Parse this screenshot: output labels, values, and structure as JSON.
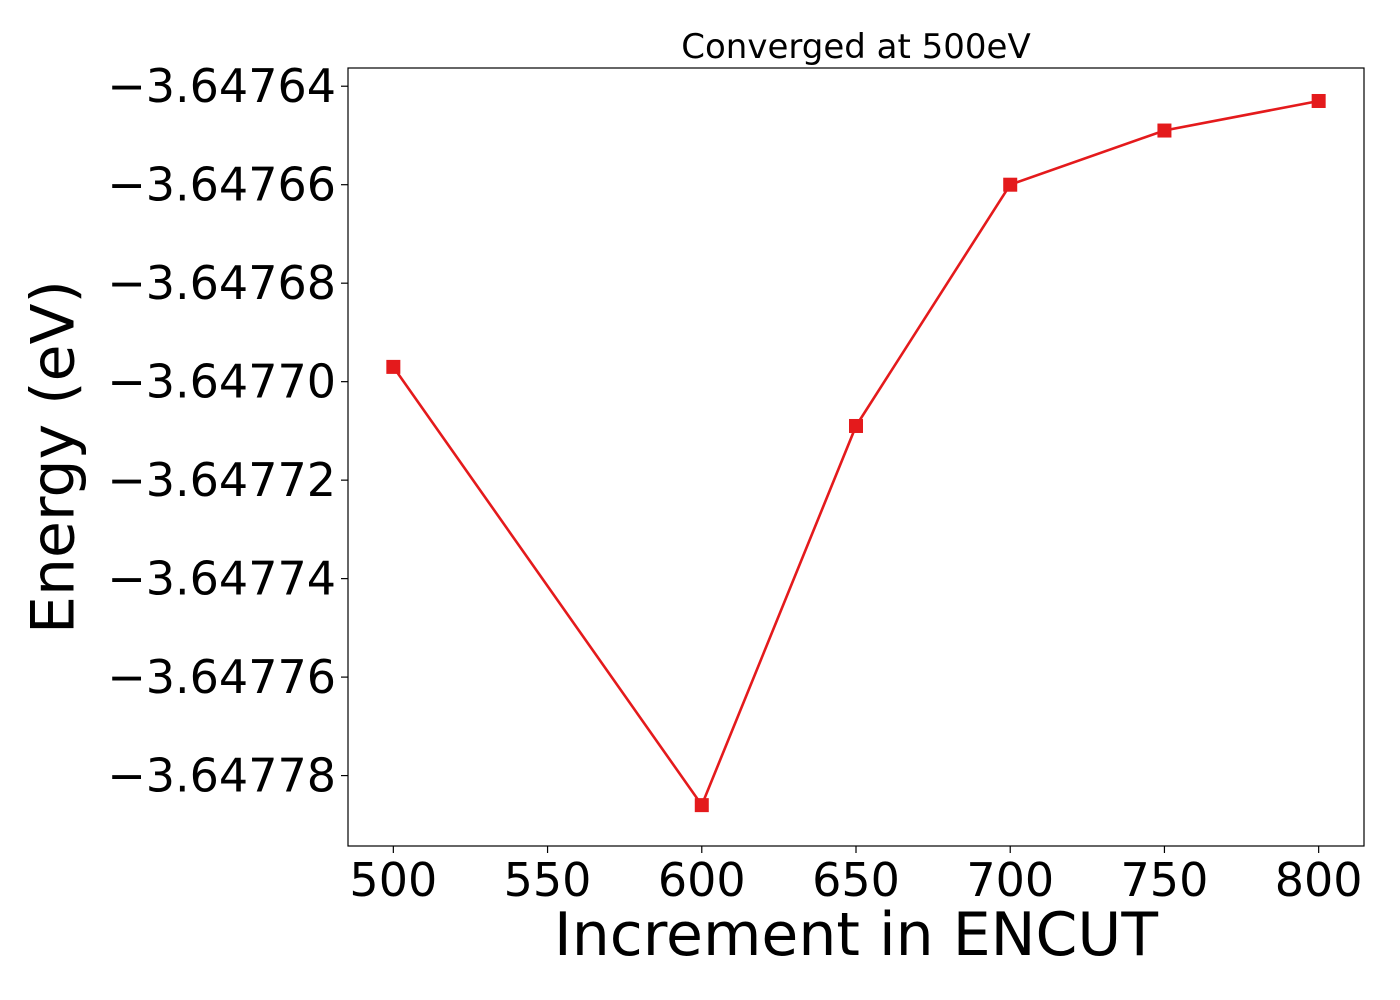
{
  "chart_data": {
    "type": "line",
    "title": "Converged at 500eV",
    "xlabel": "Increment in ENCUT",
    "ylabel": "Energy (eV)",
    "x": [
      500,
      600,
      650,
      700,
      750,
      800
    ],
    "series": [
      {
        "values": [
          -3.647697,
          -3.647786,
          -3.647709,
          -3.64766,
          -3.647649,
          -3.647643
        ],
        "color": "#e41a1c",
        "marker": "square"
      }
    ],
    "xticks": [
      500,
      550,
      600,
      650,
      700,
      750,
      800
    ],
    "xtick_labels": [
      "500",
      "550",
      "600",
      "650",
      "700",
      "750",
      "800"
    ],
    "yticks": [
      -3.64778,
      -3.64776,
      -3.64774,
      -3.64772,
      -3.6477,
      -3.64768,
      -3.64766,
      -3.64764
    ],
    "ytick_labels": [
      "−3.64778",
      "−3.64776",
      "−3.64774",
      "−3.64772",
      "−3.64770",
      "−3.64768",
      "−3.64766",
      "−3.64764"
    ],
    "xlim": [
      485.3,
      814.7
    ],
    "ylim": [
      -3.6477943,
      -3.6476363
    ],
    "grid": false,
    "legend": false
  }
}
